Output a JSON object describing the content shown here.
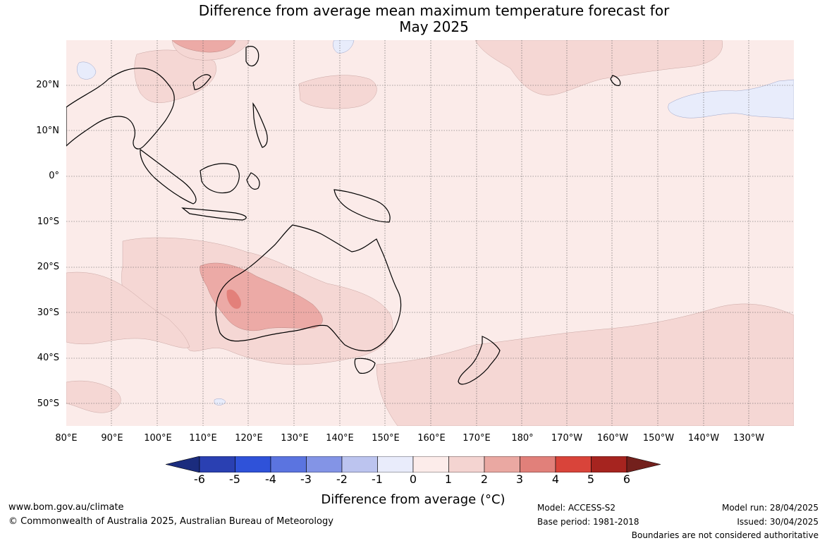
{
  "title": {
    "line1": "Difference from average mean maximum temperature forecast for",
    "line2": "May 2025"
  },
  "map": {
    "latitude_labels": [
      "20°N",
      "10°N",
      "0°",
      "10°S",
      "20°S",
      "30°S",
      "40°S",
      "50°S"
    ],
    "longitude_labels": [
      "80°E",
      "90°E",
      "100°E",
      "110°E",
      "120°E",
      "130°E",
      "140°E",
      "150°E",
      "160°E",
      "170°E",
      "180°",
      "170°W",
      "160°W",
      "150°W",
      "140°W",
      "130°W"
    ],
    "colors": {
      "background_0_to_1": "#fbebe9",
      "band_1_to_2": "#f5d7d4",
      "band_2_to_3": "#ecaaa6",
      "band_3_to_4": "#e3807a",
      "band_neg1_to_0": "#e8ecfb",
      "coastline": "#000000",
      "gridline": "#555555"
    }
  },
  "legend": {
    "title": "Difference from average (°C)",
    "tick_labels": [
      "-6",
      "-5",
      "-4",
      "-3",
      "-2",
      "-1",
      "0",
      "1",
      "2",
      "3",
      "4",
      "5",
      "6"
    ],
    "colors": [
      "#1b2c7e",
      "#2a40b2",
      "#2f52d9",
      "#5b74e0",
      "#8394e6",
      "#bcc4ef",
      "#e9ecfb",
      "#fcecea",
      "#f4d4d1",
      "#eaa8a2",
      "#e1807a",
      "#d9443a",
      "#a6241f",
      "#73201c"
    ]
  },
  "footer": {
    "website": "www.bom.gov.au/climate",
    "copyright": "© Commonwealth of Australia 2025, Australian Bureau of Meteorology",
    "model": "Model: ACCESS-S2",
    "base_period": "Base period: 1981-2018",
    "model_run": "Model run: 28/04/2025",
    "issued": "Issued: 30/04/2025",
    "disclaimer": "Boundaries are not considered authoritative"
  }
}
